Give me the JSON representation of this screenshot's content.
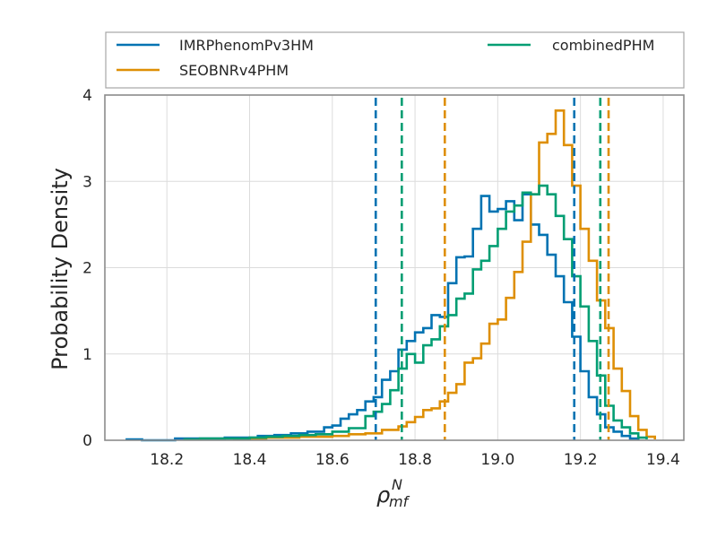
{
  "chart_data": {
    "type": "histogram",
    "xlabel": "ρ",
    "xlabel_sup": "N",
    "xlabel_sub": "mf",
    "ylabel": "Probability Density",
    "xlim": [
      18.05,
      19.45
    ],
    "ylim": [
      0,
      4
    ],
    "xticks": [
      18.2,
      18.4,
      18.6,
      18.8,
      19.0,
      19.2,
      19.4
    ],
    "xtick_labels": [
      "18.2",
      "18.4",
      "18.6",
      "18.8",
      "19.0",
      "19.2",
      "19.4"
    ],
    "yticks": [
      0,
      1,
      2,
      3,
      4
    ],
    "ytick_labels": [
      "0",
      "1",
      "2",
      "3",
      "4"
    ],
    "grid": true,
    "legend_position": "above plot, two columns",
    "series": [
      {
        "name": "IMRPhenomPv3HM",
        "color": "#0173b2",
        "steps": [
          [
            18.1,
            0.01
          ],
          [
            18.14,
            0.0
          ],
          [
            18.18,
            0.0
          ],
          [
            18.22,
            0.02
          ],
          [
            18.26,
            0.02
          ],
          [
            18.3,
            0.02
          ],
          [
            18.34,
            0.03
          ],
          [
            18.38,
            0.03
          ],
          [
            18.42,
            0.05
          ],
          [
            18.46,
            0.06
          ],
          [
            18.5,
            0.08
          ],
          [
            18.54,
            0.1
          ],
          [
            18.58,
            0.15
          ],
          [
            18.6,
            0.17
          ],
          [
            18.62,
            0.25
          ],
          [
            18.64,
            0.3
          ],
          [
            18.66,
            0.35
          ],
          [
            18.68,
            0.45
          ],
          [
            18.7,
            0.5
          ],
          [
            18.72,
            0.7
          ],
          [
            18.74,
            0.8
          ],
          [
            18.76,
            1.05
          ],
          [
            18.78,
            1.15
          ],
          [
            18.8,
            1.25
          ],
          [
            18.82,
            1.3
          ],
          [
            18.84,
            1.45
          ],
          [
            18.86,
            1.43
          ],
          [
            18.88,
            1.82
          ],
          [
            18.9,
            2.12
          ],
          [
            18.92,
            2.13
          ],
          [
            18.94,
            2.45
          ],
          [
            18.96,
            2.83
          ],
          [
            18.98,
            2.65
          ],
          [
            19.0,
            2.68
          ],
          [
            19.02,
            2.77
          ],
          [
            19.04,
            2.55
          ],
          [
            19.06,
            2.85
          ],
          [
            19.08,
            2.5
          ],
          [
            19.1,
            2.38
          ],
          [
            19.12,
            2.15
          ],
          [
            19.14,
            1.9
          ],
          [
            19.16,
            1.6
          ],
          [
            19.18,
            1.2
          ],
          [
            19.2,
            0.8
          ],
          [
            19.22,
            0.5
          ],
          [
            19.24,
            0.3
          ],
          [
            19.26,
            0.15
          ],
          [
            19.28,
            0.1
          ],
          [
            19.3,
            0.05
          ],
          [
            19.32,
            0.02
          ],
          [
            19.34,
            0.0
          ]
        ],
        "ci_lines": [
          18.705,
          19.185
        ]
      },
      {
        "name": "SEOBNRv4PHM",
        "color": "#de8f05",
        "steps": [
          [
            18.36,
            0.01
          ],
          [
            18.4,
            0.02
          ],
          [
            18.44,
            0.03
          ],
          [
            18.48,
            0.03
          ],
          [
            18.52,
            0.04
          ],
          [
            18.56,
            0.04
          ],
          [
            18.6,
            0.05
          ],
          [
            18.64,
            0.07
          ],
          [
            18.68,
            0.08
          ],
          [
            18.72,
            0.12
          ],
          [
            18.76,
            0.16
          ],
          [
            18.78,
            0.21
          ],
          [
            18.8,
            0.27
          ],
          [
            18.82,
            0.35
          ],
          [
            18.84,
            0.37
          ],
          [
            18.86,
            0.45
          ],
          [
            18.88,
            0.55
          ],
          [
            18.9,
            0.65
          ],
          [
            18.92,
            0.9
          ],
          [
            18.94,
            0.95
          ],
          [
            18.96,
            1.12
          ],
          [
            18.98,
            1.35
          ],
          [
            19.0,
            1.4
          ],
          [
            19.02,
            1.65
          ],
          [
            19.04,
            1.95
          ],
          [
            19.06,
            2.3
          ],
          [
            19.08,
            2.85
          ],
          [
            19.1,
            3.45
          ],
          [
            19.12,
            3.55
          ],
          [
            19.14,
            3.82
          ],
          [
            19.16,
            3.42
          ],
          [
            19.18,
            2.95
          ],
          [
            19.2,
            2.45
          ],
          [
            19.22,
            2.08
          ],
          [
            19.24,
            1.62
          ],
          [
            19.26,
            1.3
          ],
          [
            19.28,
            0.83
          ],
          [
            19.3,
            0.57
          ],
          [
            19.32,
            0.28
          ],
          [
            19.34,
            0.12
          ],
          [
            19.36,
            0.04
          ],
          [
            19.38,
            0.01
          ]
        ],
        "ci_lines": [
          18.872,
          19.268
        ]
      },
      {
        "name": "combinedPHM",
        "color": "#029e73",
        "steps": [
          [
            18.24,
            0.01
          ],
          [
            18.28,
            0.02
          ],
          [
            18.32,
            0.02
          ],
          [
            18.36,
            0.02
          ],
          [
            18.4,
            0.03
          ],
          [
            18.44,
            0.04
          ],
          [
            18.48,
            0.05
          ],
          [
            18.52,
            0.06
          ],
          [
            18.56,
            0.07
          ],
          [
            18.6,
            0.1
          ],
          [
            18.64,
            0.14
          ],
          [
            18.68,
            0.28
          ],
          [
            18.7,
            0.33
          ],
          [
            18.72,
            0.42
          ],
          [
            18.74,
            0.58
          ],
          [
            18.76,
            0.83
          ],
          [
            18.78,
            1.0
          ],
          [
            18.8,
            0.9
          ],
          [
            18.82,
            1.1
          ],
          [
            18.84,
            1.17
          ],
          [
            18.86,
            1.32
          ],
          [
            18.88,
            1.45
          ],
          [
            18.9,
            1.64
          ],
          [
            18.92,
            1.7
          ],
          [
            18.94,
            1.98
          ],
          [
            18.96,
            2.08
          ],
          [
            18.98,
            2.25
          ],
          [
            19.0,
            2.45
          ],
          [
            19.02,
            2.65
          ],
          [
            19.04,
            2.72
          ],
          [
            19.06,
            2.87
          ],
          [
            19.08,
            2.85
          ],
          [
            19.1,
            2.95
          ],
          [
            19.12,
            2.85
          ],
          [
            19.14,
            2.6
          ],
          [
            19.16,
            2.33
          ],
          [
            19.18,
            1.9
          ],
          [
            19.2,
            1.55
          ],
          [
            19.22,
            1.15
          ],
          [
            19.24,
            0.75
          ],
          [
            19.26,
            0.4
          ],
          [
            19.28,
            0.23
          ],
          [
            19.3,
            0.15
          ],
          [
            19.32,
            0.08
          ],
          [
            19.34,
            0.03
          ],
          [
            19.36,
            0.01
          ]
        ],
        "ci_lines": [
          18.768,
          19.248
        ]
      }
    ]
  }
}
